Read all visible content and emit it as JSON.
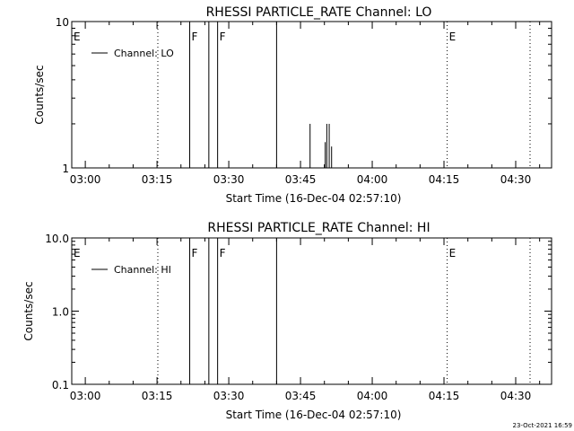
{
  "footer": {
    "timestamp": "23-Oct-2021 16:59"
  },
  "chart_data": [
    {
      "type": "line",
      "title": "RHESSI PARTICLE_RATE Channel: LO",
      "xlabel": "Start Time (16-Dec-04 02:57:10)",
      "ylabel": "Counts/sec",
      "yscale": "log",
      "xlim": [
        "02:57:10",
        "04:37:30"
      ],
      "ylim": [
        1,
        10
      ],
      "x_ticks": [
        "03:00",
        "03:15",
        "03:30",
        "03:45",
        "04:00",
        "04:15",
        "04:30"
      ],
      "y_ticks": [
        "1",
        "10"
      ],
      "legend": {
        "label": "Channel: LO",
        "placement": "top-left"
      },
      "event_flags": [
        {
          "label": "E",
          "time": "02:57:10",
          "style": "dotted"
        },
        {
          "time": "03:15:10",
          "style": "dotted"
        },
        {
          "label": "F",
          "time": "03:21:50",
          "style": "solid"
        },
        {
          "time": "03:25:50",
          "style": "solid"
        },
        {
          "label": "F",
          "time": "03:27:40",
          "style": "solid"
        },
        {
          "time": "03:40:00",
          "style": "solid"
        },
        {
          "label": "E",
          "time": "04:15:40",
          "style": "dotted"
        },
        {
          "time": "04:33:00",
          "style": "dotted"
        }
      ],
      "spikes": [
        {
          "time": "03:47:00",
          "value": 2
        },
        {
          "time": "03:50:10",
          "value": 1.5
        },
        {
          "time": "03:50:30",
          "value": 2
        },
        {
          "time": "03:51:00",
          "value": 2
        },
        {
          "time": "03:51:30",
          "value": 1.4
        }
      ]
    },
    {
      "type": "line",
      "title": "RHESSI PARTICLE_RATE Channel: HI",
      "xlabel": "Start Time (16-Dec-04 02:57:10)",
      "ylabel": "Counts/sec",
      "yscale": "log",
      "xlim": [
        "02:57:10",
        "04:37:30"
      ],
      "ylim": [
        0.1,
        10
      ],
      "x_ticks": [
        "03:00",
        "03:15",
        "03:30",
        "03:45",
        "04:00",
        "04:15",
        "04:30"
      ],
      "y_ticks": [
        "0.1",
        "1.0",
        "10.0"
      ],
      "legend": {
        "label": "Channel: HI",
        "placement": "top-left"
      },
      "event_flags": [
        {
          "label": "E",
          "time": "02:57:10",
          "style": "dotted"
        },
        {
          "time": "03:15:10",
          "style": "dotted"
        },
        {
          "label": "F",
          "time": "03:21:50",
          "style": "solid"
        },
        {
          "time": "03:25:50",
          "style": "solid"
        },
        {
          "label": "F",
          "time": "03:27:40",
          "style": "solid"
        },
        {
          "time": "03:40:00",
          "style": "solid"
        },
        {
          "label": "E",
          "time": "04:15:40",
          "style": "dotted"
        },
        {
          "time": "04:33:00",
          "style": "dotted"
        }
      ],
      "spikes": []
    }
  ]
}
